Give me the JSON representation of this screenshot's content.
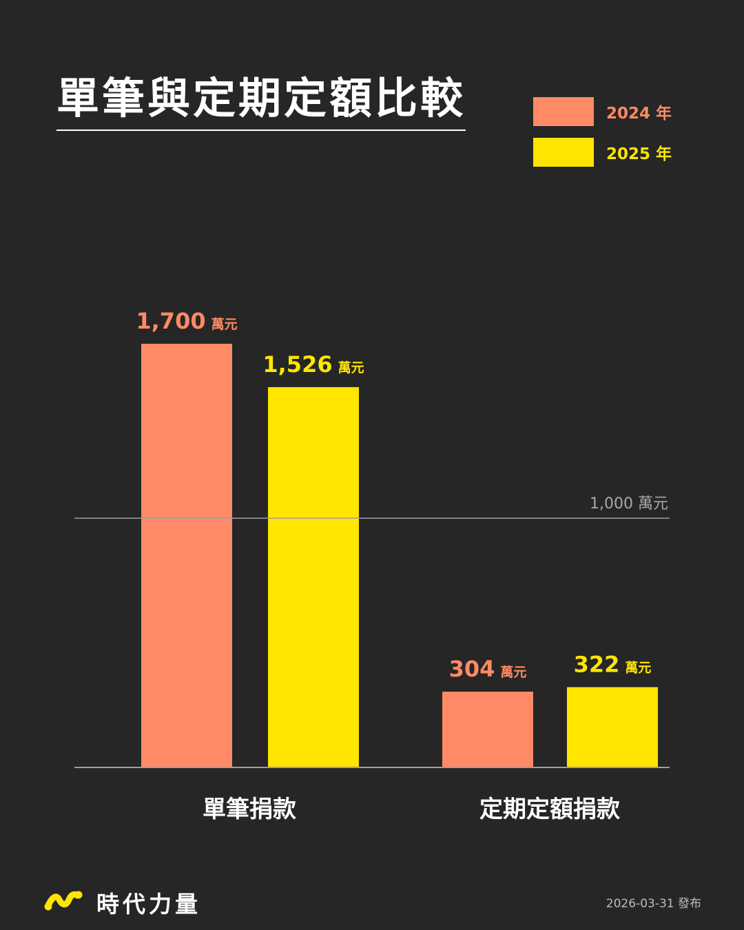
{
  "header": {
    "title": "單筆與定期定額比較"
  },
  "legend": [
    {
      "label": "2024 年",
      "color": "#ff8a65"
    },
    {
      "label": "2025 年",
      "color": "#ffe500"
    }
  ],
  "chart_data": {
    "type": "bar",
    "title": "單筆與定期定額比較",
    "categories": [
      "單筆捐款",
      "定期定額捐款"
    ],
    "series": [
      {
        "name": "2024 年",
        "color": "#ff8a65",
        "values": [
          1700,
          304
        ],
        "labels": [
          "1,700",
          "304"
        ]
      },
      {
        "name": "2025 年",
        "color": "#ffe500",
        "values": [
          1526,
          322
        ],
        "labels": [
          "1,526",
          "322"
        ]
      }
    ],
    "unit": "萬元",
    "ylim": [
      0,
      1700
    ],
    "reference_line": {
      "value": 1000,
      "label": "1,000 萬元"
    },
    "grid": false,
    "legend_position": "top-right"
  },
  "footer": {
    "brand": "時代力量",
    "date": "2026-03-31 發布"
  }
}
